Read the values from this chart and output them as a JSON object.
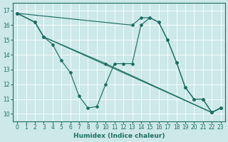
{
  "xlabel": "Humidex (Indice chaleur)",
  "xlim": [
    -0.5,
    23.5
  ],
  "ylim": [
    9.5,
    17.5
  ],
  "yticks": [
    10,
    11,
    12,
    13,
    14,
    15,
    16,
    17
  ],
  "xticks": [
    0,
    1,
    2,
    3,
    4,
    5,
    6,
    7,
    8,
    9,
    10,
    11,
    12,
    13,
    14,
    15,
    16,
    17,
    18,
    19,
    20,
    21,
    22,
    23
  ],
  "bg_color": "#cce8e8",
  "line_color": "#1e6e64",
  "grid_color": "#b8d8d8",
  "line1_x": [
    0,
    2,
    3,
    4,
    5,
    6,
    7,
    8,
    9,
    10,
    11,
    12,
    13,
    14,
    15,
    16,
    17,
    18,
    19,
    20,
    21,
    22,
    23
  ],
  "line1_y": [
    16.8,
    16.2,
    15.2,
    14.7,
    13.6,
    12.8,
    11.2,
    10.4,
    10.5,
    12.0,
    13.4,
    13.4,
    13.4,
    16.0,
    16.5,
    16.2,
    15.0,
    13.5,
    11.8,
    11.0,
    11.0,
    10.1,
    10.4
  ],
  "line2_x": [
    0,
    2,
    3,
    22,
    23
  ],
  "line2_y": [
    16.8,
    16.2,
    15.2,
    10.1,
    10.4
  ],
  "line3_x": [
    0,
    2,
    3,
    10,
    22,
    23
  ],
  "line3_y": [
    16.8,
    16.2,
    15.2,
    13.4,
    10.1,
    10.4
  ],
  "line4_x": [
    0,
    13,
    14,
    15,
    16,
    17,
    18,
    19,
    20,
    21,
    22,
    23
  ],
  "line4_y": [
    16.8,
    16.0,
    16.5,
    16.5,
    16.2,
    15.0,
    13.5,
    11.8,
    11.0,
    11.0,
    10.1,
    10.4
  ]
}
